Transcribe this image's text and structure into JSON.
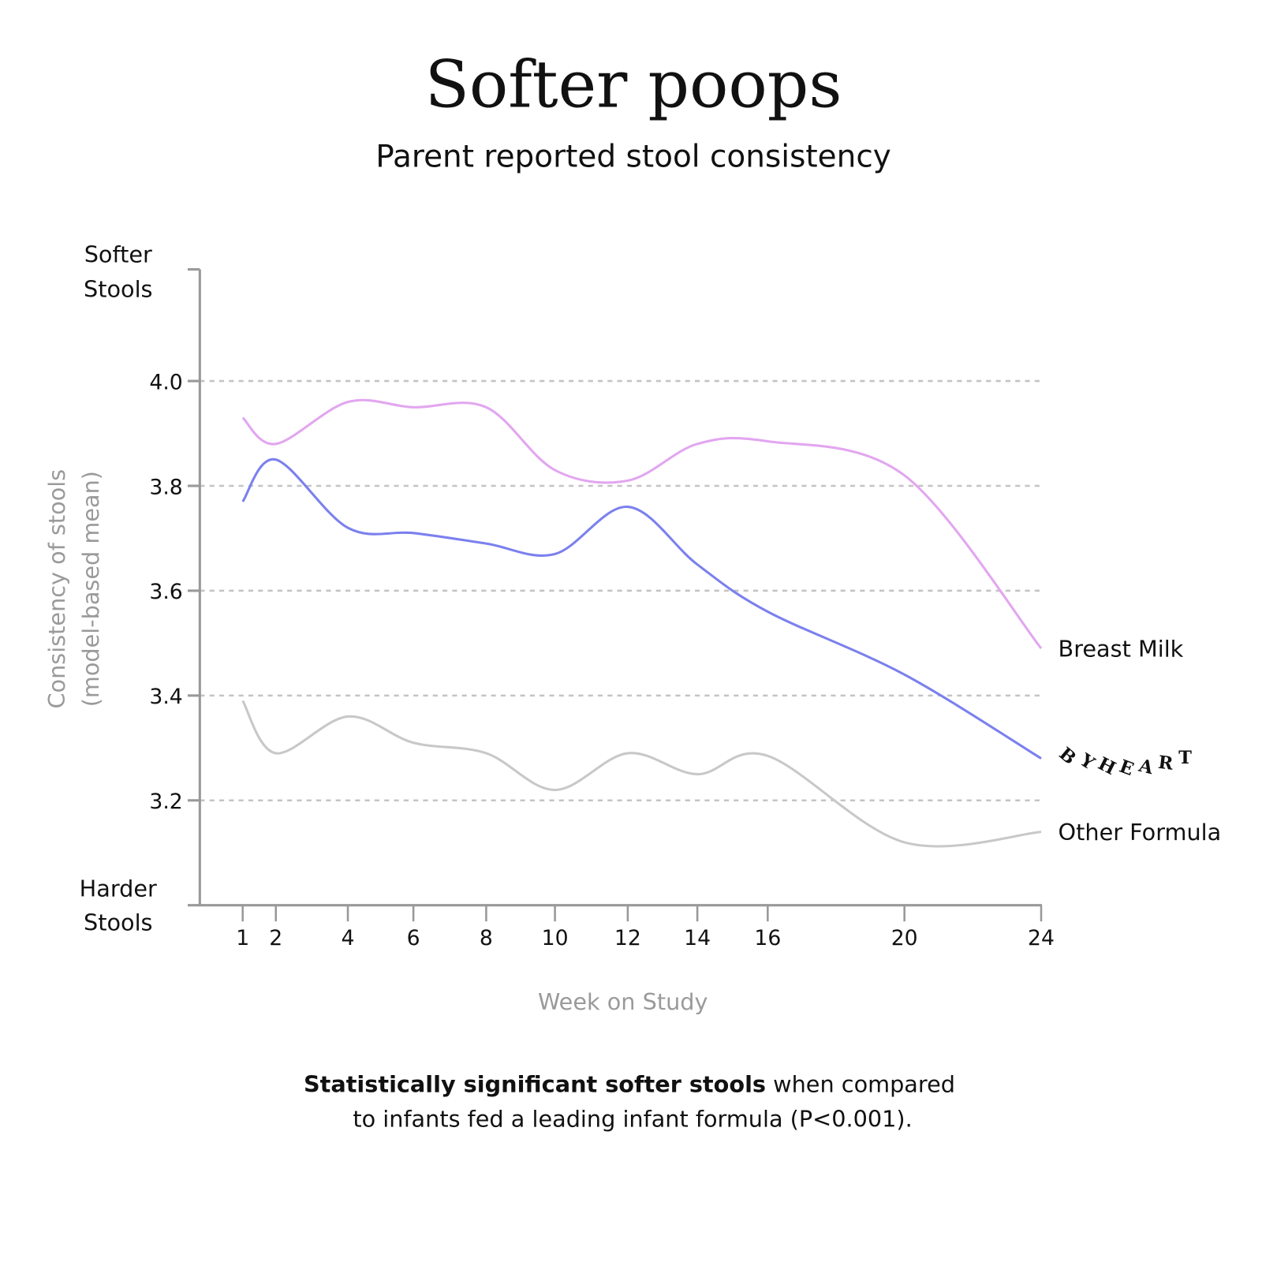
{
  "chart_data": {
    "type": "line",
    "title": "Softer poops",
    "subtitle": "Parent reported stool consistency",
    "xlabel": "Week on Study",
    "ylabel_line1": "Consistency of stools",
    "ylabel_line2": "(model-based mean)",
    "y_top_label": [
      "Softer",
      "Stools"
    ],
    "y_bottom_label": [
      "Harder",
      "Stools"
    ],
    "x": [
      1,
      2,
      4,
      6,
      8,
      10,
      12,
      14,
      16,
      20,
      24
    ],
    "x_tick_labels": [
      "1",
      "2",
      "4",
      "6",
      "8",
      "10",
      "12",
      "14",
      "16",
      "20",
      "24"
    ],
    "y_ticks": [
      4.0,
      3.8,
      3.6,
      3.4,
      3.2
    ],
    "y_tick_labels": [
      "4.0",
      "3.8",
      "3.6",
      "3.4",
      "3.2"
    ],
    "ylim": [
      2.99,
      4.21
    ],
    "grid": "horizontal dashed",
    "legend": "end-of-line labels, right",
    "series": [
      {
        "name": "Breast Milk",
        "color": "#e2a6f0",
        "values": [
          3.93,
          3.88,
          3.96,
          3.95,
          3.95,
          3.83,
          3.81,
          3.88,
          3.885,
          3.82,
          3.49
        ]
      },
      {
        "name": "BYHEART",
        "color": "#7b80ee",
        "values": [
          3.77,
          3.85,
          3.72,
          3.71,
          3.69,
          3.67,
          3.76,
          3.65,
          3.56,
          3.44,
          3.28
        ]
      },
      {
        "name": "Other Formula",
        "color": "#c8c8c8",
        "values": [
          3.39,
          3.29,
          3.36,
          3.31,
          3.29,
          3.22,
          3.29,
          3.25,
          3.285,
          3.12,
          3.14
        ]
      }
    ],
    "footnote_bold": "Statistically significant softer stools",
    "footnote_rest": " when compared",
    "footnote_line2": "to infants fed a leading infant formula (P<0.001)."
  }
}
